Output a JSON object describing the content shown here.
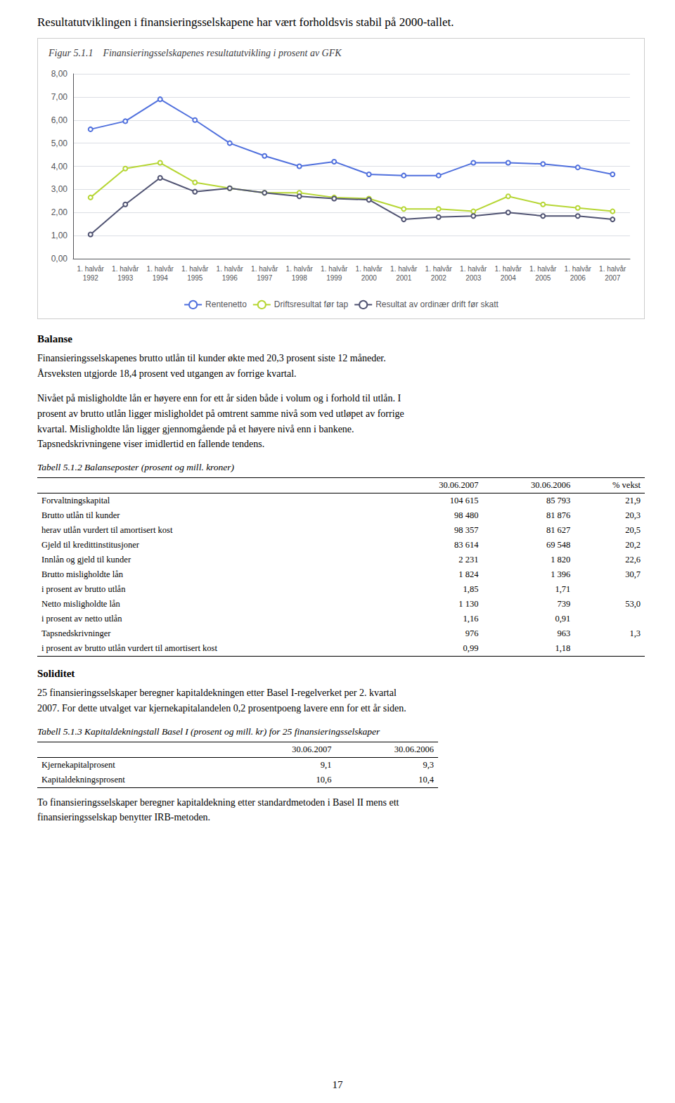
{
  "headline": "Resultatutviklingen i finansieringsselskapene har vært forholdsvis stabil på 2000-tallet.",
  "chart_data": {
    "type": "line",
    "title": "Figur 5.1.1    Finansieringsselskapenes resultatutvikling i prosent av GFK",
    "categories": [
      "1. halvår\n1992",
      "1. halvår\n1993",
      "1. halvår\n1994",
      "1. halvår\n1995",
      "1. halvår\n1996",
      "1. halvår\n1997",
      "1. halvår\n1998",
      "1. halvår\n1999",
      "1. halvår\n2000",
      "1. halvår\n2001",
      "1. halvår\n2002",
      "1. halvår\n2003",
      "1. halvår\n2004",
      "1. halvår\n2005",
      "1. halvår\n2006",
      "1. halvår\n2007"
    ],
    "series": [
      {
        "name": "Rentenetto",
        "values": [
          5.6,
          5.95,
          6.9,
          6.0,
          5.0,
          4.45,
          4.0,
          4.2,
          3.65,
          3.6,
          3.6,
          4.15,
          4.15,
          4.1,
          3.95,
          3.65
        ]
      },
      {
        "name": "Driftsresultat før tap",
        "values": [
          2.65,
          3.9,
          4.15,
          3.3,
          3.05,
          2.85,
          2.85,
          2.65,
          2.6,
          2.15,
          2.15,
          2.05,
          2.7,
          2.35,
          2.2,
          2.05
        ]
      },
      {
        "name": "Resultat av ordinær drift før skatt",
        "values": [
          1.05,
          2.35,
          3.5,
          2.9,
          3.05,
          2.85,
          2.7,
          2.6,
          2.55,
          1.7,
          1.8,
          1.85,
          2.0,
          1.85,
          1.85,
          1.7
        ]
      }
    ],
    "ylim": [
      0.0,
      8.0
    ],
    "yticks": [
      {
        "value": 0.0,
        "label": "0,00"
      },
      {
        "value": 1.0,
        "label": "1,00"
      },
      {
        "value": 2.0,
        "label": "2,00"
      },
      {
        "value": 3.0,
        "label": "3,00"
      },
      {
        "value": 4.0,
        "label": "4,00"
      },
      {
        "value": 5.0,
        "label": "5,00"
      },
      {
        "value": 6.0,
        "label": "6,00"
      },
      {
        "value": 7.0,
        "label": "7,00"
      },
      {
        "value": 8.0,
        "label": "8,00"
      }
    ],
    "grid": true,
    "legend": "bottom"
  },
  "after_chart": [
    {
      "heading": "Balanse"
    },
    {
      "paragraph": "Finansieringsselskapenes brutto utlån til kunder økte med 20,3 prosent siste 12 måneder.\nÅrsveksten utgjorde 18,4 prosent ved utgangen av forrige kvartal."
    },
    {
      "paragraph": "Nivået på misligholdte lån er høyere enn for ett år siden både i volum og i forhold til utlån. I\nprosent av brutto utlån ligger misligholdet på omtrent samme nivå som ved utløpet av forrige\nkvartal. Misligholdte lån ligger gjennomgående på et høyere nivå enn i bankene.\nTapsnedskrivningene viser imidlertid en fallende tendens."
    },
    {
      "table": {
        "caption": "Tabell 5.1.2   Balanseposter  (prosent og mill. kroner)",
        "columns": [
          null,
          "30.06.2007",
          "30.06.2006",
          "% vekst"
        ],
        "rows": [
          [
            "Forvaltningskapital",
            "104 615",
            "85 793",
            "21,9"
          ],
          [
            "Brutto utlån til kunder",
            "98 480",
            "81 876",
            "20,3"
          ],
          [
            "herav utlån vurdert til amortisert kost",
            "98 357",
            "81 627",
            "20,5"
          ],
          [
            "Gjeld til kredittinstitusjoner",
            "83 614",
            "69 548",
            "20,2"
          ],
          [
            "Innlån og gjeld til kunder",
            "2 231",
            "1 820",
            "22,6"
          ],
          [
            "Brutto misligholdte lån",
            "1 824",
            "1 396",
            "30,7"
          ],
          [
            "i prosent av brutto utlån",
            "1,85",
            "1,71",
            null
          ],
          [
            "Netto misligholdte lån",
            "1 130",
            "739",
            "53,0"
          ],
          [
            "i prosent av netto utlån",
            "1,16",
            "0,91",
            null
          ],
          [
            "Tapsnedskrivninger",
            "976",
            "963",
            "1,3"
          ],
          [
            "i prosent av brutto utlån vurdert til amortisert kost",
            "0,99",
            "1,18",
            null
          ]
        ]
      }
    },
    {
      "heading": "Soliditet"
    },
    {
      "paragraph": "25 finansieringsselskaper beregner kapitaldekningen etter Basel I-regelverket per 2. kvartal\n2007. For dette utvalget var kjernekapitalandelen 0,2 prosentpoeng lavere enn for ett år siden."
    },
    {
      "table": {
        "caption": "Tabell 5.1.3    Kapitaldekningstall Basel I (prosent og mill. kr) for 25 finansieringsselskaper",
        "columns": [
          null,
          "30.06.2007",
          "30.06.2006"
        ],
        "rows": [
          [
            "Kjernekapitalprosent",
            "9,1",
            "9,3"
          ],
          [
            "Kapitaldekningsprosent",
            "10,6",
            "10,4"
          ]
        ]
      }
    },
    {
      "paragraph": "To finansieringsselskaper beregner kapitaldekning etter standardmetoden i Basel II mens ett\nfinansieringsselskap benytter IRB-metoden."
    }
  ],
  "page_number": "17"
}
